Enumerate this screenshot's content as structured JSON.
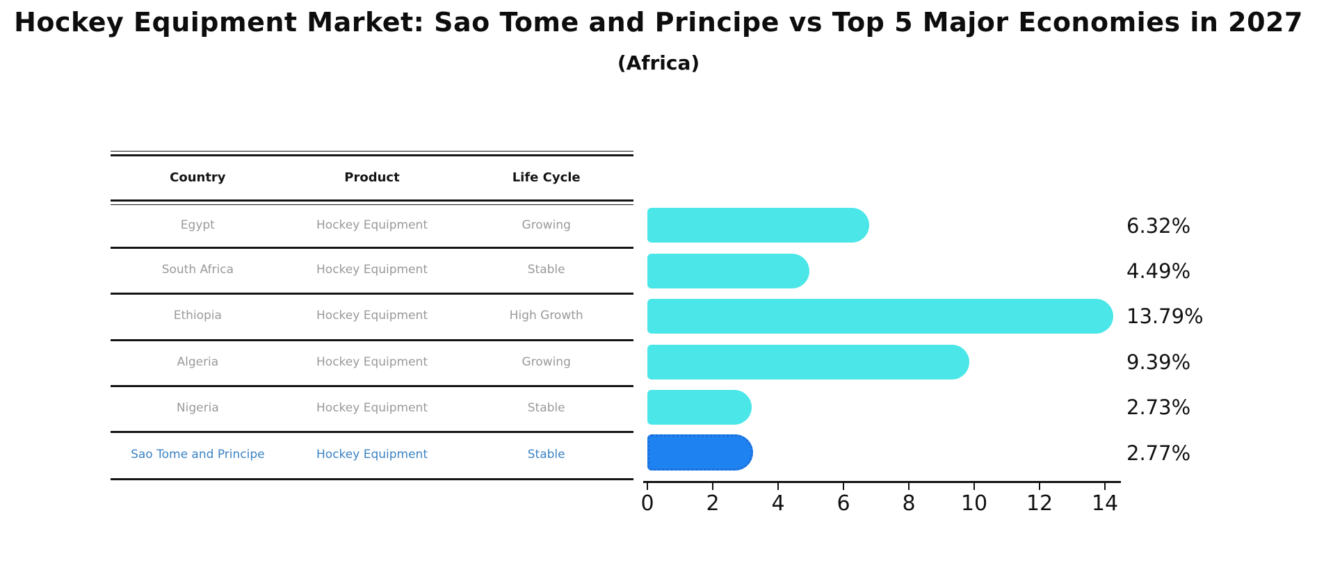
{
  "title": "Hockey Equipment Market: Sao Tome and Principe vs Top 5 Major Economies in 2027",
  "subtitle": "(Africa)",
  "table": {
    "headers": [
      "Country",
      "Product",
      "Life Cycle"
    ],
    "rows": [
      {
        "country": "Egypt",
        "product": "Hockey Equipment",
        "life_cycle": "Growing",
        "highlighted": false
      },
      {
        "country": "South Africa",
        "product": "Hockey Equipment",
        "life_cycle": "Stable",
        "highlighted": false
      },
      {
        "country": "Ethiopia",
        "product": "Hockey Equipment",
        "life_cycle": "High Growth",
        "highlighted": false
      },
      {
        "country": "Algeria",
        "product": "Hockey Equipment",
        "life_cycle": "Growing",
        "highlighted": false
      },
      {
        "country": "Nigeria",
        "product": "Hockey Equipment",
        "life_cycle": "Stable",
        "highlighted": false
      },
      {
        "country": "Sao Tome and Principe",
        "product": "Hockey Equipment",
        "life_cycle": "Stable",
        "highlighted": true
      }
    ]
  },
  "chart_data": {
    "type": "bar",
    "orientation": "horizontal",
    "categories": [
      "Egypt",
      "South Africa",
      "Ethiopia",
      "Algeria",
      "Nigeria",
      "Sao Tome and Principe"
    ],
    "values": [
      6.32,
      4.49,
      13.79,
      9.39,
      2.73,
      2.77
    ],
    "value_labels": [
      "6.32%",
      "4.49%",
      "13.79%",
      "9.39%",
      "2.73%",
      "2.77%"
    ],
    "xticks": [
      0,
      2,
      4,
      6,
      8,
      10,
      12,
      14
    ],
    "xlim": [
      0,
      14
    ],
    "grid": false,
    "legend": "none",
    "highlight_index": 5
  },
  "colors": {
    "bar_fill": "#4ae6e8",
    "highlight_fill": "#1e82f0",
    "highlight_border": "#1a6cd8",
    "highlight_text": "#3b82c4",
    "row_text": "#999999",
    "header_text": "#141414",
    "axis": "#111111"
  }
}
